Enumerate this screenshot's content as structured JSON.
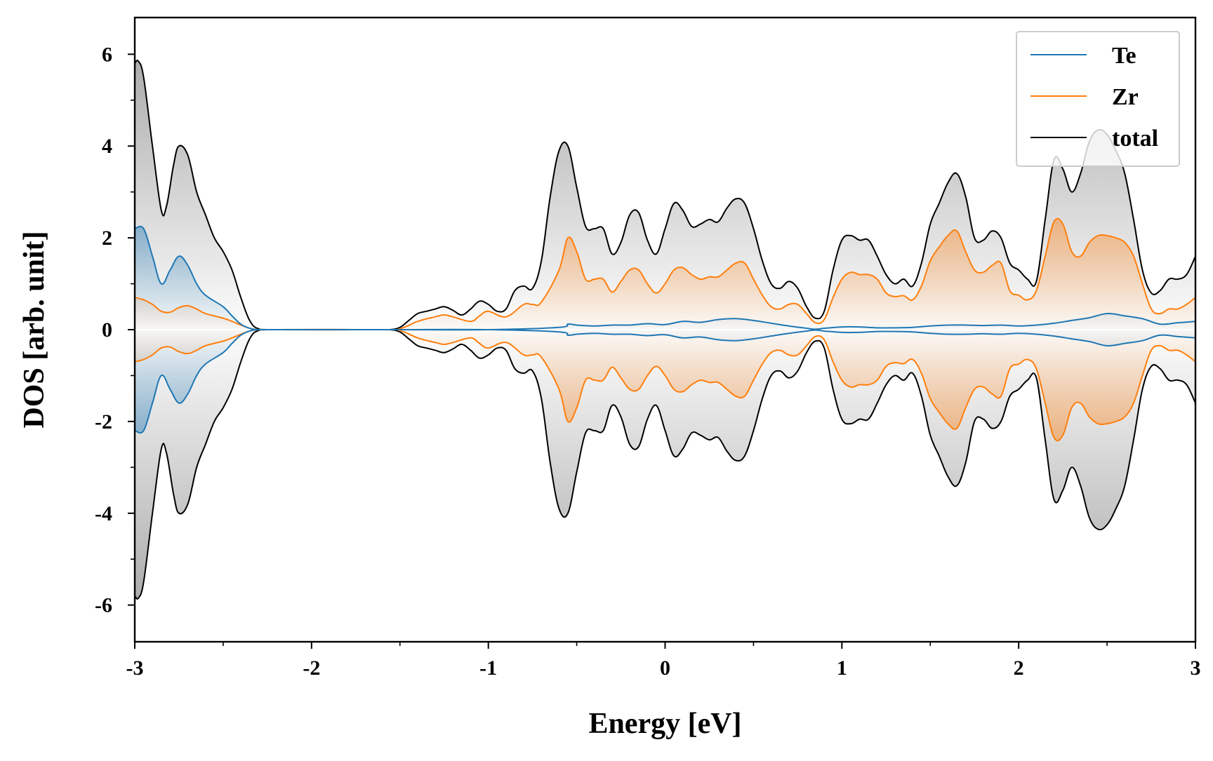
{
  "chart_data": {
    "type": "line",
    "xlabel": "Energy [eV]",
    "ylabel": "DOS [arb. unit]",
    "xlim": [
      -3,
      3
    ],
    "ylim": [
      -6.8,
      6.8
    ],
    "xticks": [
      -3,
      -2,
      -1,
      0,
      1,
      2,
      3
    ],
    "xtick_labels": [
      "-3",
      "-2",
      "-1",
      "0",
      "1",
      "2",
      "3"
    ],
    "yticks": [
      -6,
      -4,
      -2,
      0,
      2,
      4,
      6
    ],
    "ytick_labels": [
      "-6",
      "-4",
      "-2",
      "0",
      "2",
      "4",
      "6"
    ],
    "x_minor_step": 0.5,
    "y_minor_step": 1,
    "grid": false,
    "legend_position": "top-right",
    "mirrored": true,
    "series": [
      {
        "name": "Te",
        "color": "#1f77b4",
        "fill": true,
        "x": [
          -3.0,
          -2.95,
          -2.9,
          -2.85,
          -2.8,
          -2.75,
          -2.7,
          -2.65,
          -2.6,
          -2.5,
          -2.45,
          -2.4,
          -2.35,
          -2.3,
          -2.2,
          -1.8,
          -1.5,
          -1.0,
          -0.6,
          -0.55,
          -0.5,
          -0.4,
          -0.3,
          -0.2,
          -0.1,
          0.0,
          0.1,
          0.2,
          0.3,
          0.4,
          0.5,
          0.6,
          0.7,
          0.8,
          0.85,
          0.9,
          1.0,
          1.1,
          1.2,
          1.3,
          1.4,
          1.5,
          1.6,
          1.7,
          1.8,
          1.9,
          2.0,
          2.1,
          2.2,
          2.3,
          2.4,
          2.5,
          2.6,
          2.7,
          2.8,
          2.9,
          3.0
        ],
        "values": [
          2.2,
          2.2,
          1.6,
          1.0,
          1.3,
          1.6,
          1.4,
          1.0,
          0.75,
          0.5,
          0.3,
          0.12,
          0.03,
          0.0,
          0.0,
          0.0,
          0.0,
          0.0,
          0.05,
          0.12,
          0.1,
          0.08,
          0.1,
          0.1,
          0.13,
          0.11,
          0.18,
          0.16,
          0.22,
          0.24,
          0.2,
          0.14,
          0.08,
          0.03,
          0.01,
          0.03,
          0.06,
          0.06,
          0.04,
          0.04,
          0.05,
          0.08,
          0.1,
          0.1,
          0.09,
          0.1,
          0.08,
          0.1,
          0.14,
          0.2,
          0.26,
          0.35,
          0.3,
          0.24,
          0.12,
          0.15,
          0.18
        ]
      },
      {
        "name": "Zr",
        "color": "#ff7f0e",
        "fill": true,
        "x": [
          -3.0,
          -2.95,
          -2.9,
          -2.85,
          -2.8,
          -2.75,
          -2.7,
          -2.65,
          -2.6,
          -2.5,
          -2.45,
          -2.4,
          -2.35,
          -2.3,
          -2.2,
          -1.6,
          -1.5,
          -1.4,
          -1.3,
          -1.25,
          -1.2,
          -1.1,
          -1.05,
          -1.0,
          -0.9,
          -0.8,
          -0.75,
          -0.7,
          -0.6,
          -0.55,
          -0.5,
          -0.45,
          -0.4,
          -0.35,
          -0.3,
          -0.25,
          -0.2,
          -0.15,
          -0.1,
          -0.05,
          0.0,
          0.05,
          0.1,
          0.15,
          0.2,
          0.25,
          0.3,
          0.35,
          0.4,
          0.45,
          0.5,
          0.55,
          0.6,
          0.65,
          0.7,
          0.75,
          0.8,
          0.85,
          0.9,
          0.95,
          1.0,
          1.05,
          1.1,
          1.15,
          1.2,
          1.25,
          1.3,
          1.35,
          1.4,
          1.45,
          1.5,
          1.55,
          1.6,
          1.65,
          1.7,
          1.75,
          1.8,
          1.85,
          1.9,
          1.95,
          2.0,
          2.05,
          2.1,
          2.15,
          2.2,
          2.25,
          2.3,
          2.35,
          2.4,
          2.45,
          2.5,
          2.55,
          2.6,
          2.65,
          2.7,
          2.75,
          2.8,
          2.85,
          2.9,
          2.95,
          3.0
        ],
        "values": [
          0.7,
          0.65,
          0.55,
          0.4,
          0.38,
          0.48,
          0.52,
          0.45,
          0.35,
          0.25,
          0.18,
          0.1,
          0.03,
          0.0,
          0.0,
          0.0,
          0.02,
          0.18,
          0.28,
          0.32,
          0.28,
          0.18,
          0.3,
          0.4,
          0.28,
          0.55,
          0.55,
          0.6,
          1.3,
          2.0,
          1.7,
          1.1,
          1.1,
          1.1,
          0.82,
          1.05,
          1.3,
          1.3,
          1.0,
          0.8,
          1.0,
          1.3,
          1.35,
          1.2,
          1.1,
          1.15,
          1.15,
          1.3,
          1.45,
          1.45,
          1.1,
          0.75,
          0.5,
          0.45,
          0.55,
          0.55,
          0.35,
          0.15,
          0.22,
          0.7,
          1.1,
          1.25,
          1.2,
          1.2,
          1.1,
          0.8,
          0.72,
          0.74,
          0.65,
          0.95,
          1.5,
          1.8,
          2.05,
          2.15,
          1.7,
          1.3,
          1.25,
          1.4,
          1.45,
          0.85,
          0.75,
          0.65,
          0.85,
          1.6,
          2.35,
          2.3,
          1.7,
          1.6,
          1.9,
          2.05,
          2.05,
          2.0,
          1.9,
          1.6,
          1.0,
          0.45,
          0.35,
          0.45,
          0.45,
          0.55,
          0.7
        ]
      },
      {
        "name": "total",
        "color": "#000000",
        "fill": true,
        "x": [
          -3.0,
          -2.98,
          -2.95,
          -2.9,
          -2.85,
          -2.82,
          -2.78,
          -2.75,
          -2.7,
          -2.65,
          -2.6,
          -2.55,
          -2.5,
          -2.45,
          -2.4,
          -2.35,
          -2.3,
          -2.2,
          -1.6,
          -1.55,
          -1.5,
          -1.45,
          -1.4,
          -1.35,
          -1.3,
          -1.25,
          -1.2,
          -1.15,
          -1.1,
          -1.05,
          -1.0,
          -0.95,
          -0.9,
          -0.85,
          -0.8,
          -0.75,
          -0.7,
          -0.65,
          -0.6,
          -0.55,
          -0.5,
          -0.45,
          -0.4,
          -0.35,
          -0.3,
          -0.25,
          -0.2,
          -0.15,
          -0.1,
          -0.05,
          0.0,
          0.05,
          0.1,
          0.15,
          0.2,
          0.25,
          0.3,
          0.35,
          0.4,
          0.45,
          0.5,
          0.55,
          0.6,
          0.65,
          0.7,
          0.75,
          0.8,
          0.85,
          0.9,
          0.95,
          1.0,
          1.05,
          1.1,
          1.15,
          1.2,
          1.25,
          1.3,
          1.35,
          1.4,
          1.45,
          1.5,
          1.55,
          1.6,
          1.65,
          1.7,
          1.75,
          1.8,
          1.85,
          1.9,
          1.95,
          2.0,
          2.05,
          2.1,
          2.15,
          2.2,
          2.25,
          2.3,
          2.35,
          2.4,
          2.45,
          2.5,
          2.55,
          2.6,
          2.65,
          2.7,
          2.75,
          2.8,
          2.85,
          2.9,
          2.95,
          3.0
        ],
        "values": [
          5.8,
          5.85,
          5.5,
          4.0,
          2.6,
          2.7,
          3.6,
          4.0,
          3.8,
          3.0,
          2.5,
          2.0,
          1.7,
          1.3,
          0.7,
          0.2,
          0.02,
          0.0,
          0.0,
          0.0,
          0.05,
          0.2,
          0.35,
          0.4,
          0.45,
          0.5,
          0.42,
          0.32,
          0.45,
          0.62,
          0.55,
          0.4,
          0.45,
          0.85,
          0.95,
          0.9,
          1.5,
          2.9,
          3.9,
          4.0,
          3.1,
          2.25,
          2.2,
          2.2,
          1.65,
          1.9,
          2.5,
          2.55,
          1.95,
          1.65,
          2.2,
          2.75,
          2.6,
          2.25,
          2.3,
          2.4,
          2.35,
          2.65,
          2.85,
          2.75,
          2.2,
          1.5,
          1.0,
          0.9,
          1.05,
          0.9,
          0.5,
          0.25,
          0.4,
          1.3,
          1.95,
          2.05,
          1.95,
          1.95,
          1.6,
          1.2,
          1.0,
          1.1,
          0.95,
          1.45,
          2.3,
          2.75,
          3.2,
          3.4,
          2.9,
          2.0,
          1.95,
          2.15,
          2.0,
          1.45,
          1.3,
          1.1,
          1.05,
          2.4,
          3.7,
          3.5,
          3.0,
          3.4,
          4.1,
          4.35,
          4.25,
          3.9,
          3.4,
          2.4,
          1.3,
          0.8,
          0.85,
          1.1,
          1.1,
          1.2,
          1.6
        ]
      }
    ]
  }
}
